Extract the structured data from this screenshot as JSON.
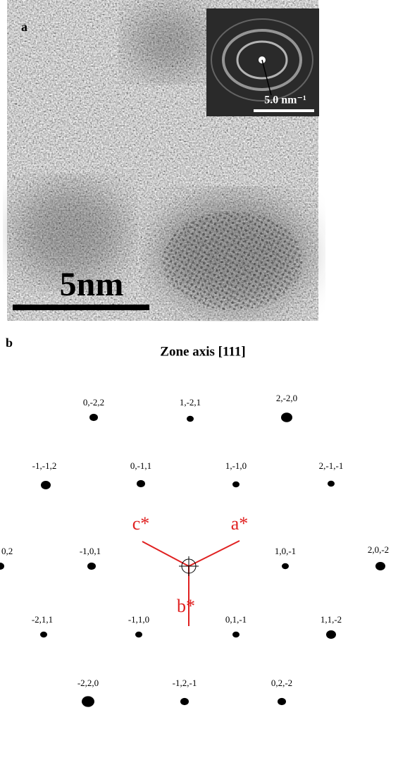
{
  "panel_a": {
    "label": "a",
    "inset_scale_bar": "5.0 nm⁻¹",
    "scale_bar": "5nm"
  },
  "panel_b": {
    "label": "b",
    "title": "Zone axis [111]",
    "spots": [
      "0,-2,2",
      "1,-2,1",
      "2,-2,0",
      "-1,-1,2",
      "0,-1,1",
      "1,-1,0",
      "2,-1,-1",
      "0,2",
      "-1,0,1",
      "1,0,-1",
      "2,0,-2",
      "-2,1,1",
      "-1,1,0",
      "0,1,-1",
      "1,1,-2",
      "-2,2,0",
      "-1,2,-1",
      "0,2,-2"
    ],
    "axes": [
      "c*",
      "a*",
      "b*"
    ]
  }
}
